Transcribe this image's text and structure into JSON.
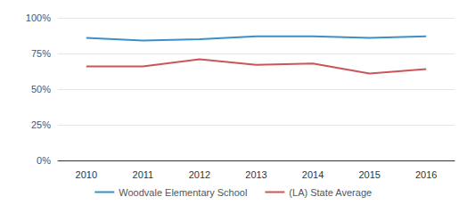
{
  "chart_data": {
    "type": "line",
    "categories": [
      "2010",
      "2011",
      "2012",
      "2013",
      "2014",
      "2015",
      "2016"
    ],
    "series": [
      {
        "name": "Woodvale Elementary School",
        "color": "#3d8ec9",
        "values": [
          86,
          84,
          85,
          87,
          87,
          86,
          87
        ]
      },
      {
        "name": "(LA) State Average",
        "color": "#c7575b",
        "values": [
          66,
          66,
          71,
          67,
          68,
          61,
          64
        ]
      }
    ],
    "ylim": [
      0,
      100
    ],
    "yticks": [
      {
        "value": 0,
        "label": "0%"
      },
      {
        "value": 25,
        "label": "25%"
      },
      {
        "value": 50,
        "label": "50%"
      },
      {
        "value": 75,
        "label": "75%"
      },
      {
        "value": 100,
        "label": "100%"
      }
    ],
    "grid": true,
    "legend": "bottom"
  }
}
